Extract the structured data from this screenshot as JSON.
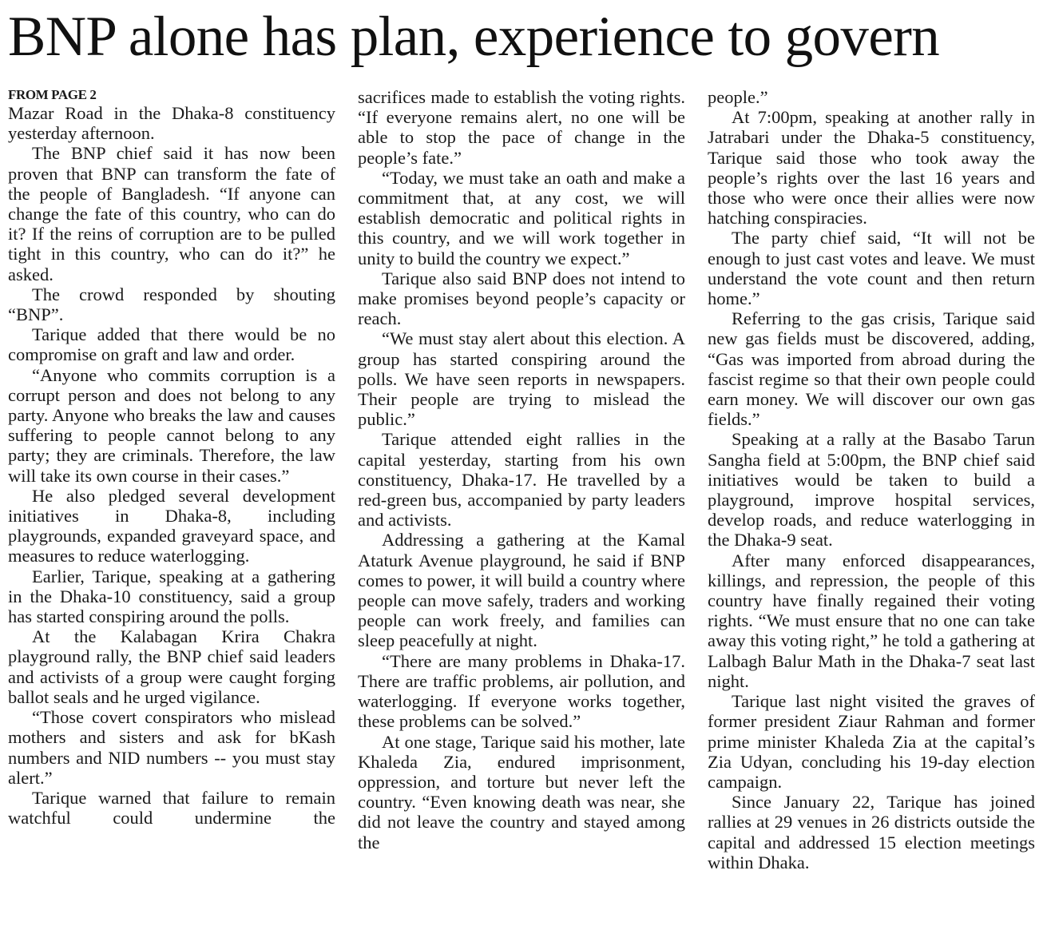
{
  "headline": "BNP alone has plan, experience to govern",
  "kicker": "FROM PAGE 2",
  "columns": [
    {
      "paragraphs": [
        {
          "text": "Mazar Road in the Dhaka-8 constituency yesterday afternoon.",
          "continued_from_previous": true
        },
        {
          "text": "The BNP chief said it has now been proven that BNP can transform the fate of the people of Bangladesh. “If anyone can change the fate of this country, who can do it? If the reins of corruption are to be pulled tight in this country, who can do it?” he asked."
        },
        {
          "text": "The crowd responded by shouting “BNP”."
        },
        {
          "text": "Tarique added that there would be no compromise on graft and law and order."
        },
        {
          "text": "“Anyone who commits corruption is a corrupt person and does not belong to any party. Anyone who breaks the law and causes suffering to people cannot belong to any party; they are criminals. Therefore, the law will take its own course in their cases.”"
        },
        {
          "text": "He also pledged several development initiatives in Dhaka-8, including playgrounds, expanded graveyard space, and measures to reduce waterlogging."
        },
        {
          "text": "Earlier, Tarique, speaking at a gathering in the Dhaka-10 constituency, said a group has started conspiring around the polls."
        },
        {
          "text": "At the Kalabagan Krira Chakra playground rally, the BNP chief said leaders and activists of a group were caught forging ballot seals and he urged vigilance."
        },
        {
          "text": "“Those covert conspirators who mislead mothers and sisters and ask for bKash numbers and NID numbers -- you must stay alert.”"
        },
        {
          "text": "Tarique warned that failure to remain watchful could undermine the",
          "continues": true
        }
      ]
    },
    {
      "paragraphs": [
        {
          "text": "sacrifices made to establish the voting rights. “If everyone remains alert, no one will be able to stop the pace of change in the people’s fate.”",
          "continued_from_previous": true
        },
        {
          "text": "“Today, we must take an oath and make a commitment that, at any cost, we will establish democratic and political rights in this country, and we will work together in unity to build the country we expect.”"
        },
        {
          "text": "Tarique also said BNP does not intend to make promises beyond people’s capacity or reach."
        },
        {
          "text": "“We must stay alert about this election. A group has started conspiring around the polls. We have seen reports in newspapers. Their people are trying to mislead the public.”"
        },
        {
          "text": "Tarique attended eight rallies in the capital yesterday, starting from his own constituency, Dhaka-17. He travelled by a red-green bus, accompanied by party leaders and activists."
        },
        {
          "text": "Addressing a gathering at the Kamal Ataturk Avenue playground, he said if BNP comes to power, it will build a country where people can move safely, traders and working people can work freely, and families can sleep peacefully at night."
        },
        {
          "text": "“There are many problems in Dhaka-17. There are traffic problems, air pollution, and waterlogging. If everyone works together, these problems can be solved.”"
        },
        {
          "text": "At one stage, Tarique said his mother, late Khaleda Zia, endured imprisonment, oppression, and torture but never left the country. “Even knowing death was near, she did not leave the country and stayed among the",
          "continues": true
        }
      ]
    },
    {
      "paragraphs": [
        {
          "text": "people.”",
          "continued_from_previous": true
        },
        {
          "text": "At 7:00pm, speaking at another rally in Jatrabari under the Dhaka-5 constituency, Tarique said those who took away the people’s rights over the last 16 years and those who were once their allies were now hatching conspiracies."
        },
        {
          "text": "The party chief said, “It will not be enough to just cast votes and leave. We must understand the vote count and then return home.”"
        },
        {
          "text": "Referring to the gas crisis, Tarique said new gas fields must be discovered, adding, “Gas was imported from abroad during the fascist regime so that their own people could earn money. We will discover our own gas fields.”"
        },
        {
          "text": "Speaking at a rally at the Basabo Tarun Sangha field at 5:00pm, the BNP chief said initiatives would be taken to build a playground, improve hospital services, develop roads, and reduce waterlogging in the Dhaka-9 seat."
        },
        {
          "text": "After many enforced disappearances, killings, and repression, the people of this country have finally regained their voting rights. “We must ensure that no one can take away this voting right,” he told a gathering at Lalbagh Balur Math in the Dhaka-7 seat last night."
        },
        {
          "text": "Tarique last night visited the graves of former president Ziaur Rahman and former prime minister Khaleda Zia at the capital’s Zia Udyan, concluding his 19-day election campaign."
        },
        {
          "text": "Since January 22, Tarique has joined rallies at 29 venues in 26 districts outside the capital and addressed 15 election meetings within Dhaka."
        }
      ]
    }
  ]
}
